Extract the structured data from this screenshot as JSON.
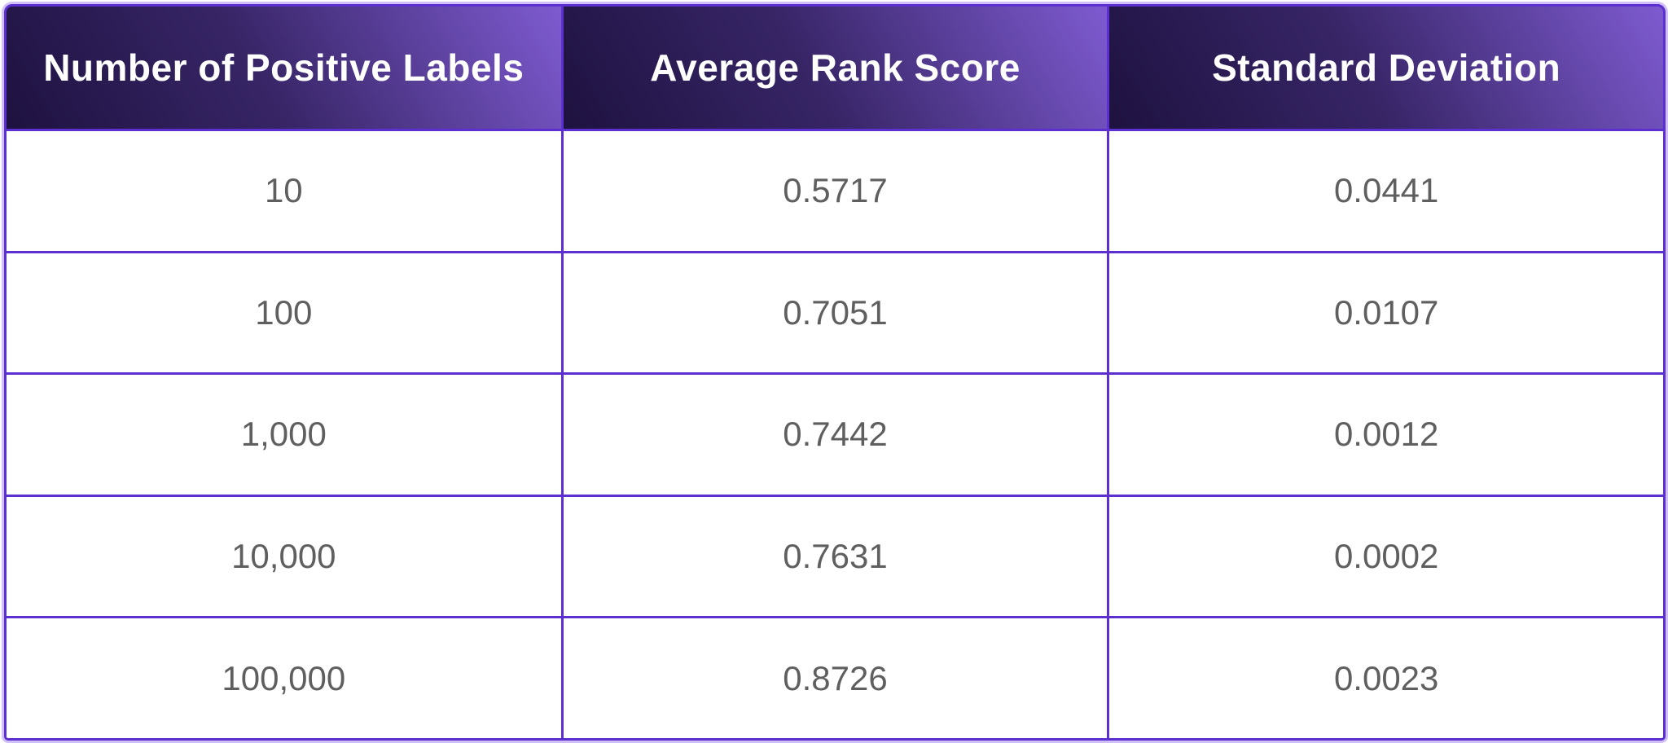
{
  "chart_data": {
    "type": "table",
    "columns": [
      "Number of Positive Labels",
      "Average Rank Score",
      "Standard Deviation"
    ],
    "rows": [
      [
        "10",
        "0.5717",
        "0.0441"
      ],
      [
        "100",
        "0.7051",
        "0.0107"
      ],
      [
        "1,000",
        "0.7442",
        "0.0012"
      ],
      [
        "10,000",
        "0.7631",
        "0.0002"
      ],
      [
        "100,000",
        "0.8726",
        "0.0023"
      ]
    ]
  },
  "colors": {
    "grid_border": "#5b2fd0",
    "outer_halo": "#aa8cf0",
    "header_gradient_dark": "#1e1240",
    "header_gradient_mid": "#372566",
    "header_gradient_light": "#7e5bd0",
    "header_text": "#ffffff",
    "cell_text": "#5f5f5f",
    "cell_background": "#ffffff"
  }
}
